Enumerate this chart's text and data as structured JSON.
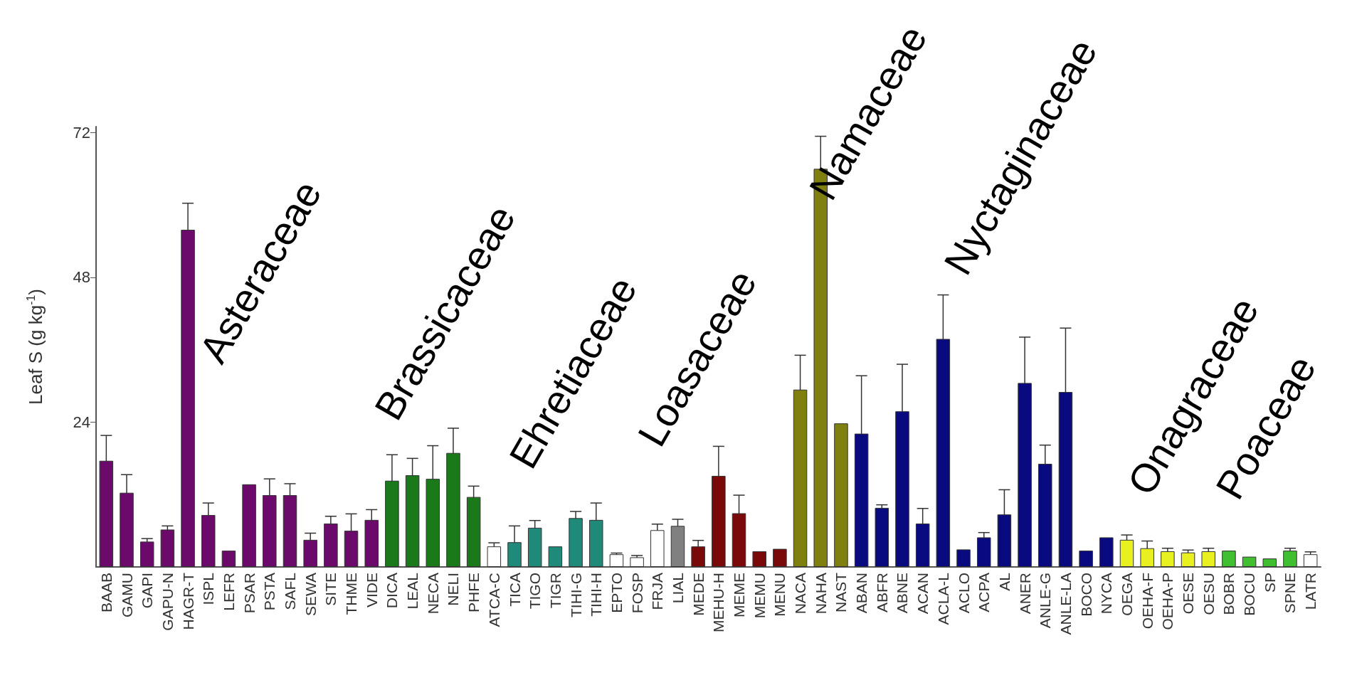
{
  "chart_data": {
    "type": "bar",
    "ylabel": "Leaf S (g kg$^{-1}$)",
    "categories": [
      "BAAB",
      "GAMU",
      "GAPI",
      "GAPU-N",
      "HAGR-T",
      "ISPL",
      "LEFR",
      "PSAR",
      "PSTA",
      "SAFL",
      "SEWA",
      "SITE",
      "THME",
      "VIDE",
      "DICA",
      "LEAL",
      "NECA",
      "NELI",
      "PHFE",
      "ATCA-C",
      "TICA",
      "TIGO",
      "TIGR",
      "TIHI-G",
      "TIHI-H",
      "EPTO",
      "FOSP",
      "FRJA",
      "LIAL",
      "MEDE",
      "MEHU-H",
      "MEME",
      "MEMU",
      "MENU",
      "NACA",
      "NAHA",
      "NAST",
      "ABAN",
      "ABFR",
      "ABNE",
      "ACAN",
      "ACLA-L",
      "ACLO",
      "ACPA",
      "AL",
      "ANER",
      "ANLE-G",
      "ANLE-LA",
      "BOCO",
      "NYCA",
      "OEGA",
      "OEHA-F",
      "OEHA-P",
      "OESE",
      "OESU",
      "BOBR",
      "BOCU",
      "SP",
      "SPNE",
      "LATR"
    ],
    "values": [
      17.6,
      12.3,
      4.2,
      6.2,
      55.9,
      8.6,
      2.7,
      13.7,
      11.9,
      11.9,
      4.5,
      7.2,
      6.0,
      7.8,
      14.3,
      15.2,
      14.6,
      18.9,
      11.6,
      3.4,
      4.1,
      6.5,
      3.4,
      8.1,
      7.8,
      2.1,
      1.6,
      6.1,
      6.8,
      3.4,
      15.1,
      8.9,
      2.6,
      3.0,
      29.4,
      66.0,
      23.8,
      22.1,
      9.8,
      25.8,
      7.2,
      37.8,
      2.9,
      4.9,
      8.7,
      30.5,
      17.1,
      29.0,
      2.7,
      4.9,
      4.5,
      3.1,
      2.6,
      2.4,
      2.6,
      2.7,
      1.7,
      1.4,
      2.7,
      2.1
    ],
    "errors": [
      4.2,
      3.0,
      0.5,
      0.6,
      4.4,
      2.0,
      null,
      null,
      2.7,
      1.9,
      1.1,
      1.2,
      2.8,
      1.7,
      4.3,
      2.8,
      5.5,
      4.1,
      1.8,
      0.6,
      2.7,
      1.2,
      null,
      1.1,
      2.8,
      0.2,
      0.3,
      1.0,
      1.1,
      1.0,
      4.9,
      3.0,
      null,
      null,
      5.7,
      5.4,
      null,
      9.6,
      0.5,
      7.8,
      2.5,
      7.3,
      null,
      0.8,
      4.1,
      7.6,
      3.1,
      10.6,
      null,
      null,
      0.8,
      1.2,
      0.5,
      0.4,
      0.5,
      null,
      null,
      null,
      0.4,
      0.4
    ],
    "colors": [
      "#6b0a6b",
      "#6b0a6b",
      "#6b0a6b",
      "#6b0a6b",
      "#6b0a6b",
      "#6b0a6b",
      "#6b0a6b",
      "#6b0a6b",
      "#6b0a6b",
      "#6b0a6b",
      "#6b0a6b",
      "#6b0a6b",
      "#6b0a6b",
      "#6b0a6b",
      "#1a7a1a",
      "#1a7a1a",
      "#1a7a1a",
      "#1a7a1a",
      "#1a7a1a",
      "#ffffff",
      "#1f8a7a",
      "#1f8a7a",
      "#1f8a7a",
      "#1f8a7a",
      "#1f8a7a",
      "#ffffff",
      "#ffffff",
      "#ffffff",
      "#808080",
      "#7a0a0a",
      "#7a0a0a",
      "#7a0a0a",
      "#7a0a0a",
      "#7a0a0a",
      "#808010",
      "#808010",
      "#808010",
      "#0a0a80",
      "#0a0a80",
      "#0a0a80",
      "#0a0a80",
      "#0a0a80",
      "#0a0a80",
      "#0a0a80",
      "#0a0a80",
      "#0a0a80",
      "#0a0a80",
      "#0a0a80",
      "#0a0a80",
      "#0a0a80",
      "#e8f020",
      "#e8f020",
      "#e8f020",
      "#e8f020",
      "#e8f020",
      "#40c030",
      "#40c030",
      "#40c030",
      "#40c030",
      "#ffffff"
    ],
    "ylim": [
      0,
      73
    ],
    "yticks": [
      24,
      48,
      72
    ],
    "annotations": [
      "Asteraceae",
      "Brassicaceae",
      "Ehretiaceae",
      "Loasaceae",
      "Namaceae",
      "Nyctaginaceae",
      "Onagraceae",
      "Poaceae"
    ]
  }
}
